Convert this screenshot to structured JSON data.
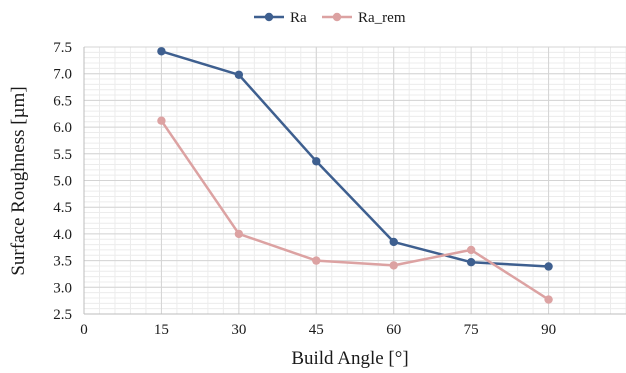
{
  "chart_data": {
    "type": "line",
    "xlabel": "Build Angle [°]",
    "ylabel": "Surface Roughness [µm]",
    "x": [
      15,
      30,
      45,
      60,
      75,
      90
    ],
    "xlim": [
      0,
      105
    ],
    "ylim": [
      2.5,
      7.5
    ],
    "xticks": [
      "0",
      "15",
      "30",
      "45",
      "60",
      "75",
      "90"
    ],
    "yticks": [
      "2.5",
      "3.0",
      "3.5",
      "4.0",
      "4.5",
      "5.0",
      "5.5",
      "6.0",
      "6.5",
      "7.0",
      "7.5"
    ],
    "grid": "major and minor",
    "legend": "top-center",
    "series": [
      {
        "name": "Ra",
        "color": "#3e5f8f",
        "values": [
          7.42,
          6.98,
          5.36,
          3.85,
          3.47,
          3.39
        ]
      },
      {
        "name": "Ra_rem",
        "color": "#dca2a2",
        "values": [
          6.12,
          4.0,
          3.5,
          3.41,
          3.7,
          2.77
        ]
      }
    ]
  }
}
